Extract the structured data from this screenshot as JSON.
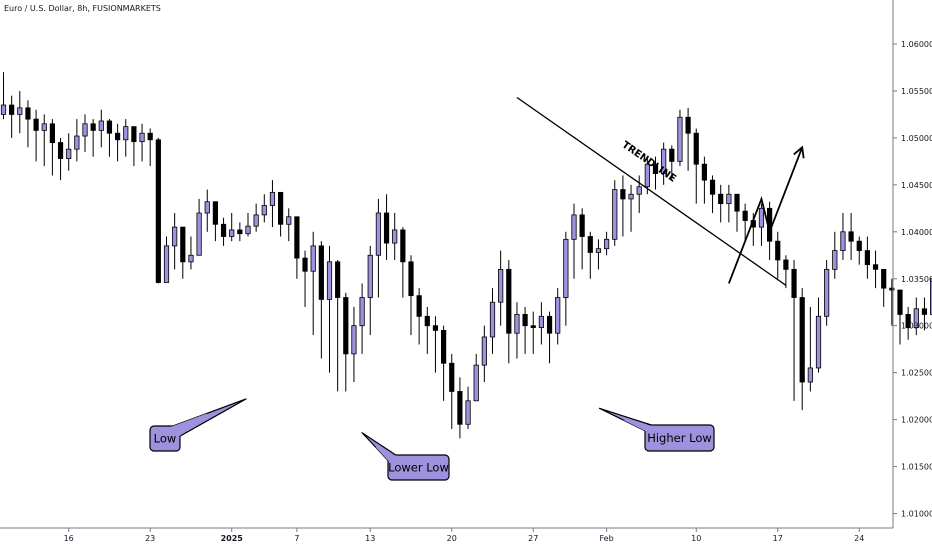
{
  "header": {
    "title": "Euro / U.S. Dollar, 8h, FUSIONMARKETS"
  },
  "colors": {
    "bull": "#9c92dd",
    "bear": "#000000",
    "callout_fill": "#9c92dd",
    "line": "#000000",
    "background": "#ffffff"
  },
  "chart_data": {
    "type": "candlestick",
    "title": "Euro / U.S. Dollar, 8h, FUSIONMARKETS",
    "ylim": [
      1.006,
      1.0635
    ],
    "y_ticks": [
      "1.06000",
      "1.05500",
      "1.05000",
      "1.04500",
      "1.04000",
      "1.03500",
      "1.03000",
      "1.02500",
      "1.02000",
      "1.01500",
      "1.01000"
    ],
    "y_tick_values": [
      1.06,
      1.055,
      1.05,
      1.045,
      1.04,
      1.035,
      1.03,
      1.025,
      1.02,
      1.015,
      1.01
    ],
    "x_ticks": [
      {
        "label": "16",
        "bar": 8,
        "bold": false
      },
      {
        "label": "23",
        "bar": 18,
        "bold": false
      },
      {
        "label": "2025",
        "bar": 28,
        "bold": true
      },
      {
        "label": "7",
        "bar": 36,
        "bold": false
      },
      {
        "label": "13",
        "bar": 45,
        "bold": false
      },
      {
        "label": "20",
        "bar": 55,
        "bold": false
      },
      {
        "label": "27",
        "bar": 65,
        "bold": false
      },
      {
        "label": "Feb",
        "bar": 74,
        "bold": false
      },
      {
        "label": "10",
        "bar": 85,
        "bold": false
      },
      {
        "label": "17",
        "bar": 95,
        "bold": false
      },
      {
        "label": "24",
        "bar": 105,
        "bold": false
      }
    ],
    "closes": [
      1.0535,
      1.0525,
      1.0532,
      1.052,
      1.0508,
      1.0515,
      1.0495,
      1.0478,
      1.0488,
      1.0502,
      1.0515,
      1.0508,
      1.0518,
      1.0505,
      1.0498,
      1.0512,
      1.0496,
      1.0505,
      1.0498,
      1.0346,
      1.0385,
      1.0405,
      1.0368,
      1.0375,
      1.042,
      1.0432,
      1.0408,
      1.0395,
      1.0402,
      1.0398,
      1.0406,
      1.0418,
      1.0428,
      1.0442,
      1.0408,
      1.0416,
      1.0372,
      1.0358,
      1.0385,
      1.0328,
      1.0368,
      1.033,
      1.027,
      1.03,
      1.033,
      1.0375,
      1.042,
      1.0388,
      1.0402,
      1.0368,
      1.0332,
      1.031,
      1.03,
      1.0295,
      1.026,
      1.023,
      1.0195,
      1.022,
      1.0258,
      1.0288,
      1.0325,
      1.036,
      1.0292,
      1.0312,
      1.03,
      1.0298,
      1.031,
      1.0292,
      1.033,
      1.0392,
      1.0418,
      1.0395,
      1.0378,
      1.0382,
      1.0392,
      1.0445,
      1.0435,
      1.044,
      1.0448,
      1.0472,
      1.0462,
      1.0488,
      1.0475,
      1.0522,
      1.0505,
      1.0472,
      1.0455,
      1.044,
      1.043,
      1.044,
      1.0422,
      1.0412,
      1.0405,
      1.0425,
      1.039,
      1.037,
      1.036,
      1.033,
      1.024,
      1.0255,
      1.031,
      1.036,
      1.038,
      1.04,
      1.039,
      1.038,
      1.0365,
      1.036,
      1.034,
      1.0338,
      1.0312,
      1.0298,
      1.0318,
      1.0312,
      1.035,
      1.0372
    ],
    "lows": [
      1.052,
      1.05,
      1.0505,
      1.049,
      1.0475,
      1.047,
      1.046,
      1.0455,
      1.0465,
      1.0475,
      1.0485,
      1.048,
      1.049,
      1.048,
      1.0475,
      1.048,
      1.047,
      1.0475,
      1.047,
      1.0345,
      1.0355,
      1.036,
      1.035,
      1.036,
      1.0375,
      1.04,
      1.039,
      1.0385,
      1.039,
      1.039,
      1.0395,
      1.04,
      1.041,
      1.0405,
      1.0395,
      1.039,
      1.035,
      1.032,
      1.029,
      1.0265,
      1.025,
      1.023,
      1.023,
      1.024,
      1.027,
      1.029,
      1.033,
      1.037,
      1.037,
      1.033,
      1.029,
      1.028,
      1.027,
      1.025,
      1.022,
      1.019,
      1.018,
      1.019,
      1.022,
      1.024,
      1.027,
      1.03,
      1.026,
      1.0265,
      1.027,
      1.027,
      1.028,
      1.026,
      1.028,
      1.03,
      1.035,
      1.036,
      1.035,
      1.036,
      1.0375,
      1.0385,
      1.0395,
      1.04,
      1.042,
      1.044,
      1.0445,
      1.045,
      1.0455,
      1.047,
      1.0465,
      1.043,
      1.043,
      1.042,
      1.041,
      1.041,
      1.04,
      1.039,
      1.0385,
      1.0385,
      1.037,
      1.035,
      1.034,
      1.022,
      1.021,
      1.023,
      1.025,
      1.03,
      1.035,
      1.037,
      1.037,
      1.0365,
      1.035,
      1.034,
      1.032,
      1.03,
      1.028,
      1.0285,
      1.029,
      1.0295,
      1.03,
      1.034
    ],
    "highs": [
      1.057,
      1.0545,
      1.055,
      1.054,
      1.053,
      1.0525,
      1.052,
      1.05,
      1.0505,
      1.052,
      1.0525,
      1.052,
      1.053,
      1.052,
      1.0515,
      1.052,
      1.051,
      1.0515,
      1.051,
      1.05,
      1.0395,
      1.042,
      1.0405,
      1.0395,
      1.0435,
      1.0445,
      1.0432,
      1.0415,
      1.042,
      1.041,
      1.042,
      1.043,
      1.044,
      1.0455,
      1.044,
      1.0425,
      1.0415,
      1.038,
      1.04,
      1.039,
      1.0385,
      1.037,
      1.0335,
      1.032,
      1.0345,
      1.0385,
      1.0435,
      1.044,
      1.042,
      1.0405,
      1.0375,
      1.034,
      1.032,
      1.031,
      1.03,
      1.027,
      1.0245,
      1.0235,
      1.027,
      1.03,
      1.034,
      1.038,
      1.037,
      1.0325,
      1.032,
      1.0315,
      1.0325,
      1.0315,
      1.034,
      1.04,
      1.043,
      1.0425,
      1.04,
      1.0392,
      1.04,
      1.0455,
      1.046,
      1.045,
      1.046,
      1.048,
      1.048,
      1.0495,
      1.0492,
      1.053,
      1.0532,
      1.051,
      1.048,
      1.046,
      1.045,
      1.045,
      1.044,
      1.043,
      1.042,
      1.043,
      1.0432,
      1.04,
      1.0375,
      1.037,
      1.034,
      1.032,
      1.033,
      1.037,
      1.04,
      1.042,
      1.042,
      1.0395,
      1.0395,
      1.038,
      1.036,
      1.035,
      1.033,
      1.032,
      1.033,
      1.033,
      1.0355,
      1.038
    ],
    "annotations": [
      {
        "name": "callout-low",
        "text": "Low"
      },
      {
        "name": "callout-lower-low",
        "text": "Lower Low"
      },
      {
        "name": "callout-higher-low",
        "text": "Higher Low"
      },
      {
        "name": "trendline-label",
        "text": "TRENDLINE"
      }
    ],
    "trendline": {
      "from": {
        "bar": 63,
        "price": 1.0543
      },
      "to": {
        "bar": 96,
        "price": 1.0343
      }
    },
    "projection_arrow": [
      {
        "bar": 89,
        "price": 1.0345
      },
      {
        "bar": 93,
        "price": 1.0435
      },
      {
        "bar": 94,
        "price": 1.04
      },
      {
        "bar": 98,
        "price": 1.049
      }
    ]
  }
}
